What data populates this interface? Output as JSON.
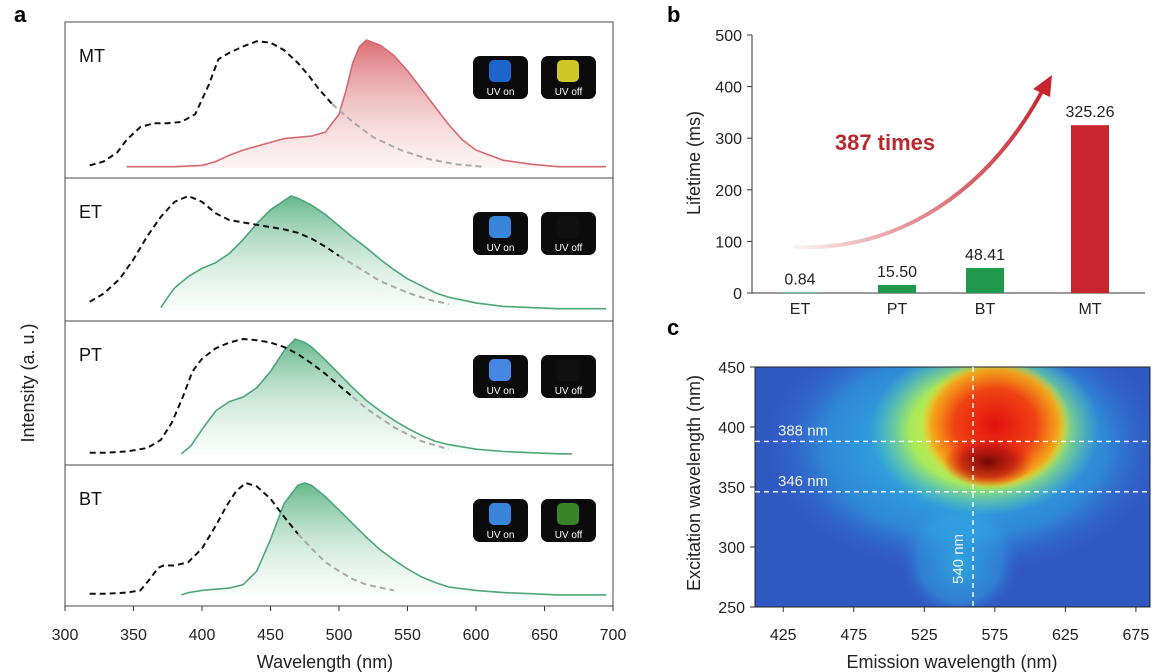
{
  "chart_data": [
    {
      "panel": "a",
      "type": "line",
      "xlabel": "Wavelength (nm)",
      "ylabel": "Intensity (a. u.)",
      "xlim": [
        300,
        700
      ],
      "xticks": [
        300,
        350,
        400,
        450,
        500,
        550,
        600,
        650,
        700
      ],
      "badge_labels": [
        "UV on",
        "UV off"
      ],
      "subplots": [
        {
          "sample": "MT",
          "emission_color": "#d46a6f",
          "badge_colors": [
            "#1f6bd6",
            "#d9d22a"
          ],
          "excitation": {
            "x": [
              318,
              328,
              338,
              345,
              355,
              365,
              375,
              385,
              395,
              405,
              412,
              420,
              430,
              440,
              450,
              460,
              470,
              478,
              485,
              495,
              510,
              525,
              545,
              565,
              585,
              605
            ],
            "y": [
              0.02,
              0.05,
              0.12,
              0.22,
              0.32,
              0.35,
              0.35,
              0.36,
              0.42,
              0.65,
              0.85,
              0.9,
              0.95,
              0.99,
              0.98,
              0.92,
              0.82,
              0.72,
              0.62,
              0.5,
              0.36,
              0.24,
              0.14,
              0.07,
              0.03,
              0.01
            ]
          },
          "emission": {
            "x": [
              345,
              360,
              380,
              400,
              410,
              420,
              430,
              440,
              450,
              460,
              470,
              480,
              490,
              500,
              505,
              510,
              515,
              520,
              525,
              530,
              540,
              550,
              560,
              570,
              580,
              590,
              600,
              620,
              640,
              660,
              680,
              695
            ],
            "y": [
              0.01,
              0.01,
              0.01,
              0.02,
              0.05,
              0.1,
              0.14,
              0.17,
              0.2,
              0.23,
              0.24,
              0.25,
              0.28,
              0.42,
              0.6,
              0.82,
              0.95,
              1.0,
              0.98,
              0.96,
              0.88,
              0.76,
              0.62,
              0.48,
              0.34,
              0.22,
              0.14,
              0.06,
              0.03,
              0.01,
              0.01,
              0.01
            ]
          }
        },
        {
          "sample": "ET",
          "emission_color": "#4da679",
          "badge_colors": [
            "#3b8de8",
            "#111111"
          ],
          "excitation": {
            "x": [
              318,
              328,
              340,
              350,
              360,
              370,
              380,
              390,
              400,
              410,
              420,
              430,
              440,
              450,
              460,
              470,
              480,
              490,
              500,
              515,
              530,
              550,
              565,
              580
            ],
            "y": [
              0.08,
              0.15,
              0.28,
              0.45,
              0.65,
              0.82,
              0.95,
              1.0,
              0.95,
              0.85,
              0.79,
              0.77,
              0.75,
              0.73,
              0.71,
              0.68,
              0.63,
              0.56,
              0.48,
              0.37,
              0.26,
              0.16,
              0.1,
              0.06
            ]
          },
          "emission": {
            "x": [
              370,
              375,
              380,
              390,
              400,
              410,
              420,
              430,
              440,
              450,
              460,
              465,
              470,
              480,
              490,
              500,
              510,
              520,
              530,
              540,
              550,
              560,
              570,
              580,
              600,
              620,
              640,
              660,
              680,
              695
            ],
            "y": [
              0.03,
              0.12,
              0.2,
              0.3,
              0.37,
              0.42,
              0.5,
              0.62,
              0.76,
              0.88,
              0.96,
              1.0,
              0.98,
              0.92,
              0.84,
              0.74,
              0.64,
              0.55,
              0.45,
              0.36,
              0.28,
              0.22,
              0.16,
              0.12,
              0.07,
              0.04,
              0.03,
              0.02,
              0.02,
              0.02
            ]
          }
        },
        {
          "sample": "PT",
          "emission_color": "#4da679",
          "badge_colors": [
            "#4b8ff0",
            "#111111"
          ],
          "excitation": {
            "x": [
              318,
              330,
              345,
              360,
              370,
              378,
              386,
              393,
              400,
              410,
              420,
              430,
              440,
              450,
              460,
              470,
              480,
              490,
              500,
              510,
              520,
              540,
              560,
              580
            ],
            "y": [
              0.02,
              0.02,
              0.03,
              0.06,
              0.13,
              0.28,
              0.5,
              0.72,
              0.83,
              0.92,
              0.97,
              1.0,
              0.99,
              0.97,
              0.93,
              0.87,
              0.79,
              0.7,
              0.6,
              0.5,
              0.4,
              0.24,
              0.12,
              0.05
            ]
          },
          "emission": {
            "x": [
              385,
              392,
              400,
              410,
              420,
              430,
              440,
              450,
              460,
              468,
              475,
              480,
              490,
              500,
              510,
              520,
              530,
              540,
              550,
              560,
              570,
              580,
              600,
              620,
              640,
              660,
              670
            ],
            "y": [
              0.01,
              0.08,
              0.22,
              0.38,
              0.46,
              0.5,
              0.58,
              0.72,
              0.9,
              1.0,
              0.97,
              0.93,
              0.82,
              0.7,
              0.58,
              0.47,
              0.38,
              0.3,
              0.23,
              0.17,
              0.12,
              0.09,
              0.05,
              0.03,
              0.02,
              0.01,
              0.01
            ]
          }
        },
        {
          "sample": "BT",
          "emission_color": "#4da679",
          "badge_colors": [
            "#3b8de8",
            "#3d8a2a"
          ],
          "excitation": {
            "x": [
              318,
              330,
              345,
              355,
              362,
              368,
              372,
              380,
              390,
              400,
              410,
              418,
              425,
              432,
              440,
              450,
              460,
              470,
              480,
              490,
              500,
              510,
              520,
              540
            ],
            "y": [
              0.02,
              0.02,
              0.03,
              0.05,
              0.15,
              0.25,
              0.27,
              0.27,
              0.3,
              0.42,
              0.62,
              0.8,
              0.93,
              1.0,
              0.97,
              0.86,
              0.7,
              0.55,
              0.42,
              0.3,
              0.22,
              0.15,
              0.1,
              0.05
            ]
          },
          "emission": {
            "x": [
              385,
              390,
              400,
              410,
              420,
              430,
              440,
              450,
              460,
              470,
              475,
              480,
              490,
              500,
              510,
              520,
              530,
              540,
              550,
              560,
              570,
              580,
              600,
              620,
              640,
              660,
              680,
              695
            ],
            "y": [
              0.01,
              0.03,
              0.05,
              0.06,
              0.07,
              0.1,
              0.22,
              0.5,
              0.82,
              0.98,
              1.0,
              0.98,
              0.88,
              0.76,
              0.64,
              0.52,
              0.41,
              0.32,
              0.24,
              0.17,
              0.12,
              0.08,
              0.05,
              0.03,
              0.02,
              0.01,
              0.01,
              0.01
            ]
          }
        }
      ]
    },
    {
      "panel": "b",
      "type": "bar",
      "ylabel": "Lifetime (ms)",
      "ylim": [
        0,
        500
      ],
      "yticks": [
        0,
        100,
        200,
        300,
        400,
        500
      ],
      "categories": [
        "ET",
        "PT",
        "BT",
        "MT"
      ],
      "values": [
        0.84,
        15.5,
        48.41,
        325.26
      ],
      "value_labels": [
        "0.84",
        "15.50",
        "48.41",
        "325.26"
      ],
      "bar_colors": [
        "#1f9a4c",
        "#1f9a4c",
        "#1f9a4c",
        "#c8262e"
      ],
      "annotation": "387 times",
      "annotation_color": "#b8282e"
    },
    {
      "panel": "c",
      "type": "heatmap",
      "xlabel": "Emission wavelength (nm)",
      "ylabel": "Excitation wavelength (nm)",
      "xlim": [
        405,
        685
      ],
      "ylim": [
        250,
        450
      ],
      "xticks": [
        425,
        475,
        525,
        575,
        625,
        675
      ],
      "yticks": [
        250,
        300,
        350,
        400,
        450
      ],
      "hlines": [
        {
          "y": 388,
          "label": "388 nm"
        },
        {
          "y": 346,
          "label": "346 nm"
        }
      ],
      "vlines": [
        {
          "x": 540,
          "label": "540 nm"
        }
      ],
      "peak": {
        "emission": 540,
        "excitation": 346
      }
    }
  ]
}
